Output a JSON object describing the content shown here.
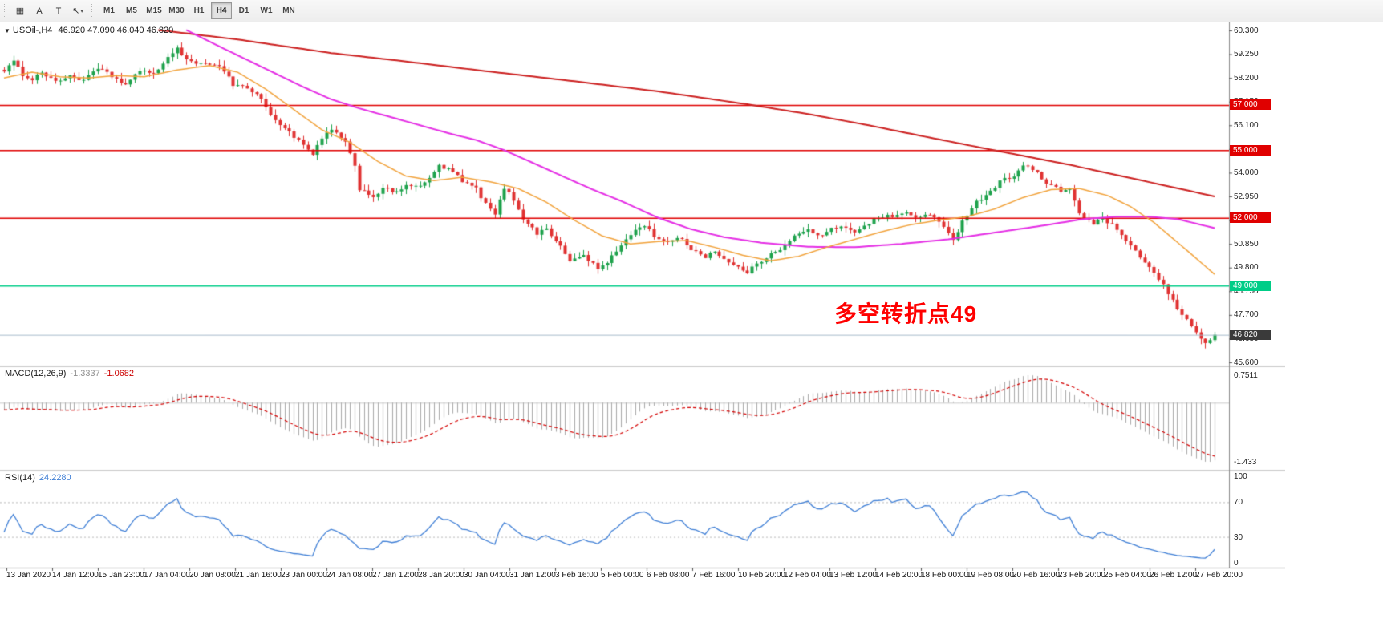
{
  "toolbar": {
    "tool_buttons": [
      {
        "id": "templates",
        "glyph": "▦"
      },
      {
        "id": "text-label",
        "glyph": "A"
      },
      {
        "id": "text-box",
        "glyph": "T"
      },
      {
        "id": "cursor-tool",
        "glyph": "↖",
        "caret": "▾"
      }
    ],
    "timeframes": [
      "M1",
      "M5",
      "M15",
      "M30",
      "H1",
      "H4",
      "D1",
      "W1",
      "MN"
    ],
    "active_timeframe": "H4"
  },
  "chart": {
    "title": "USOil-,H4",
    "ohlc": "46.920 47.090 46.040 46.820",
    "annotation": {
      "text": "多空转折点49",
      "color": "#ff0000"
    },
    "levels": [
      {
        "price": 57.0,
        "label": "57.000",
        "color": "#e00000"
      },
      {
        "price": 55.0,
        "label": "55.000",
        "color": "#e00000"
      },
      {
        "price": 52.0,
        "label": "52.000",
        "color": "#e00000"
      },
      {
        "price": 49.0,
        "label": "49.000",
        "color": "#00cd87"
      }
    ],
    "current_price": {
      "value": 46.82,
      "label": "46.820",
      "color": "#3a3a3a"
    },
    "price_axis": {
      "max": 60.3,
      "min": 45.6,
      "step": 1.05,
      "ticks": [
        "60.300",
        "59.250",
        "58.200",
        "57.150",
        "56.100",
        "55.050",
        "54.000",
        "52.950",
        "51.900",
        "50.850",
        "49.800",
        "48.750",
        "47.700",
        "46.650",
        "45.600"
      ]
    }
  },
  "indicators": {
    "macd": {
      "label": "MACD(12,26,9)",
      "main_value": "-1.3337",
      "signal_value": "-1.0682",
      "axis_max": "0.7511",
      "axis_min": "-1.433"
    },
    "rsi": {
      "label": "RSI(14)",
      "value": "24.2280",
      "axis_labels": [
        "100",
        "70",
        "30",
        "0"
      ],
      "levels": [
        70,
        30
      ]
    }
  },
  "time_axis": {
    "labels": [
      "13 Jan 2020",
      "14 Jan 12:00",
      "15 Jan 23:00",
      "17 Jan 04:00",
      "20 Jan 08:00",
      "21 Jan 16:00",
      "23 Jan 00:00",
      "24 Jan 08:00",
      "27 Jan 12:00",
      "28 Jan 20:00",
      "30 Jan 04:00",
      "31 Jan 12:00",
      "3 Feb 16:00",
      "5 Feb 00:00",
      "6 Feb 08:00",
      "7 Feb 16:00",
      "10 Feb 20:00",
      "12 Feb 04:00",
      "13 Feb 12:00",
      "14 Feb 20:00",
      "18 Feb 00:00",
      "19 Feb 08:00",
      "20 Feb 16:00",
      "23 Feb 20:00",
      "25 Feb 04:00",
      "26 Feb 12:00",
      "27 Feb 20:00"
    ]
  },
  "colors": {
    "candle_up": "#1ea24c",
    "candle_down": "#e03232",
    "ma_slow": "#cc2020",
    "ma_medium": "#e52ee5",
    "ma_fast": "#f2a33c",
    "level_red": "#e00000",
    "level_green": "#00cd87",
    "current_price_line": "#a8bccd",
    "rsi_line": "#3f7fd6",
    "rsi_level_line": "#bbbbbb",
    "macd_signal": "#d40000",
    "macd_histogram": "#a9a9a9",
    "annotation_red": "#ff0000"
  },
  "chart_data": {
    "type": "candlestick",
    "symbol": "USOil-",
    "timeframe": "H4",
    "visible_range": {
      "start": "13 Jan 2020",
      "end": "27 Feb 20:00"
    },
    "candle_count": 260,
    "last_close": 46.82,
    "horizontal_lines": [
      57.0,
      55.0,
      52.0,
      49.0
    ],
    "price_path_anchors": [
      [
        0,
        58.55
      ],
      [
        2,
        58.9
      ],
      [
        4,
        58.35
      ],
      [
        6,
        58.15
      ],
      [
        8,
        58.45
      ],
      [
        10,
        58.2
      ],
      [
        12,
        58.0
      ],
      [
        14,
        58.35
      ],
      [
        16,
        58.1
      ],
      [
        18,
        58.25
      ],
      [
        20,
        58.6
      ],
      [
        22,
        58.4
      ],
      [
        24,
        58.15
      ],
      [
        26,
        57.9
      ],
      [
        28,
        58.3
      ],
      [
        30,
        58.55
      ],
      [
        32,
        58.4
      ],
      [
        34,
        58.8
      ],
      [
        36,
        59.3
      ],
      [
        37,
        59.55
      ],
      [
        39,
        59.0
      ],
      [
        41,
        58.75
      ],
      [
        43,
        58.9
      ],
      [
        45,
        58.8
      ],
      [
        47,
        58.55
      ],
      [
        49,
        57.9
      ],
      [
        51,
        57.85
      ],
      [
        53,
        57.6
      ],
      [
        55,
        57.3
      ],
      [
        57,
        56.5
      ],
      [
        60,
        56.0
      ],
      [
        63,
        55.4
      ],
      [
        66,
        54.8
      ],
      [
        68,
        55.5
      ],
      [
        70,
        55.95
      ],
      [
        73,
        55.3
      ],
      [
        75,
        54.3
      ],
      [
        76,
        53.3
      ],
      [
        79,
        52.95
      ],
      [
        81,
        53.3
      ],
      [
        84,
        53.1
      ],
      [
        86,
        53.5
      ],
      [
        89,
        53.35
      ],
      [
        92,
        54.0
      ],
      [
        93,
        54.3
      ],
      [
        96,
        54.05
      ],
      [
        98,
        53.6
      ],
      [
        101,
        53.3
      ],
      [
        103,
        52.6
      ],
      [
        105,
        52.15
      ],
      [
        107,
        53.35
      ],
      [
        109,
        52.8
      ],
      [
        111,
        52.0
      ],
      [
        114,
        51.3
      ],
      [
        116,
        51.55
      ],
      [
        119,
        50.7
      ],
      [
        121,
        50.1
      ],
      [
        124,
        50.35
      ],
      [
        127,
        49.75
      ],
      [
        129,
        50.0
      ],
      [
        132,
        50.8
      ],
      [
        134,
        51.3
      ],
      [
        137,
        51.7
      ],
      [
        139,
        51.2
      ],
      [
        142,
        50.9
      ],
      [
        145,
        51.1
      ],
      [
        147,
        50.6
      ],
      [
        150,
        50.3
      ],
      [
        152,
        50.55
      ],
      [
        155,
        50.0
      ],
      [
        157,
        49.8
      ],
      [
        159,
        49.6
      ],
      [
        162,
        50.1
      ],
      [
        164,
        50.45
      ],
      [
        167,
        50.75
      ],
      [
        169,
        51.2
      ],
      [
        172,
        51.45
      ],
      [
        175,
        51.2
      ],
      [
        177,
        51.5
      ],
      [
        180,
        51.6
      ],
      [
        182,
        51.4
      ],
      [
        185,
        51.8
      ],
      [
        187,
        52.0
      ],
      [
        190,
        52.1
      ],
      [
        193,
        52.2
      ],
      [
        195,
        52.0
      ],
      [
        198,
        52.2
      ],
      [
        200,
        51.8
      ],
      [
        203,
        51.0
      ],
      [
        205,
        51.9
      ],
      [
        208,
        52.7
      ],
      [
        211,
        53.2
      ],
      [
        213,
        53.6
      ],
      [
        216,
        53.9
      ],
      [
        218,
        54.35
      ],
      [
        221,
        54.0
      ],
      [
        223,
        53.5
      ],
      [
        226,
        53.2
      ],
      [
        228,
        53.3
      ],
      [
        230,
        52.2
      ],
      [
        233,
        51.7
      ],
      [
        235,
        52.0
      ],
      [
        238,
        51.5
      ],
      [
        240,
        50.9
      ],
      [
        243,
        50.3
      ],
      [
        245,
        49.8
      ],
      [
        248,
        49.0
      ],
      [
        250,
        48.3
      ],
      [
        252,
        47.7
      ],
      [
        255,
        47.0
      ],
      [
        257,
        46.4
      ],
      [
        259,
        46.82
      ]
    ],
    "moving_averages": [
      {
        "name": "ma-slow",
        "color": "#cc2020",
        "width": 2,
        "points": [
          [
            33,
            60.32
          ],
          [
            50,
            59.9
          ],
          [
            70,
            59.3
          ],
          [
            85,
            58.95
          ],
          [
            103,
            58.5
          ],
          [
            120,
            58.1
          ],
          [
            140,
            57.6
          ],
          [
            159,
            57.03
          ],
          [
            172,
            56.6
          ],
          [
            185,
            56.1
          ],
          [
            197,
            55.6
          ],
          [
            208,
            55.15
          ],
          [
            218,
            54.75
          ],
          [
            228,
            54.35
          ],
          [
            238,
            53.9
          ],
          [
            248,
            53.45
          ],
          [
            259,
            52.95
          ]
        ]
      },
      {
        "name": "ma-medium",
        "color": "#e52ee5",
        "width": 2,
        "points": [
          [
            39,
            60.32
          ],
          [
            46,
            59.6
          ],
          [
            52,
            59.0
          ],
          [
            58,
            58.4
          ],
          [
            64,
            57.8
          ],
          [
            70,
            57.25
          ],
          [
            76,
            56.85
          ],
          [
            83,
            56.45
          ],
          [
            89,
            56.1
          ],
          [
            96,
            55.7
          ],
          [
            101,
            55.45
          ],
          [
            107,
            55.0
          ],
          [
            113,
            54.45
          ],
          [
            120,
            53.8
          ],
          [
            126,
            53.25
          ],
          [
            132,
            52.75
          ],
          [
            140,
            52.0
          ],
          [
            147,
            51.5
          ],
          [
            154,
            51.15
          ],
          [
            162,
            50.9
          ],
          [
            172,
            50.72
          ],
          [
            182,
            50.7
          ],
          [
            192,
            50.85
          ],
          [
            202,
            51.05
          ],
          [
            212,
            51.35
          ],
          [
            222,
            51.65
          ],
          [
            231,
            51.95
          ],
          [
            238,
            52.05
          ],
          [
            245,
            52.05
          ],
          [
            251,
            51.95
          ],
          [
            259,
            51.55
          ]
        ]
      },
      {
        "name": "ma-fast",
        "color": "#f2a33c",
        "width": 1.5,
        "points": [
          [
            0,
            58.2
          ],
          [
            6,
            58.45
          ],
          [
            12,
            58.25
          ],
          [
            18,
            58.2
          ],
          [
            24,
            58.3
          ],
          [
            30,
            58.25
          ],
          [
            37,
            58.55
          ],
          [
            44,
            58.75
          ],
          [
            50,
            58.45
          ],
          [
            56,
            57.7
          ],
          [
            62,
            56.8
          ],
          [
            68,
            55.9
          ],
          [
            74,
            55.35
          ],
          [
            80,
            54.5
          ],
          [
            86,
            53.85
          ],
          [
            92,
            53.65
          ],
          [
            98,
            53.8
          ],
          [
            104,
            53.6
          ],
          [
            110,
            53.3
          ],
          [
            116,
            52.7
          ],
          [
            122,
            51.9
          ],
          [
            128,
            51.2
          ],
          [
            134,
            50.85
          ],
          [
            140,
            50.95
          ],
          [
            146,
            51.0
          ],
          [
            152,
            50.7
          ],
          [
            158,
            50.35
          ],
          [
            164,
            50.1
          ],
          [
            170,
            50.3
          ],
          [
            176,
            50.7
          ],
          [
            182,
            51.05
          ],
          [
            188,
            51.4
          ],
          [
            194,
            51.7
          ],
          [
            200,
            51.9
          ],
          [
            206,
            52.05
          ],
          [
            212,
            52.4
          ],
          [
            218,
            52.9
          ],
          [
            224,
            53.25
          ],
          [
            230,
            53.3
          ],
          [
            236,
            53.0
          ],
          [
            241,
            52.5
          ],
          [
            246,
            51.8
          ],
          [
            250,
            51.1
          ],
          [
            254,
            50.4
          ],
          [
            259,
            49.5
          ]
        ]
      }
    ]
  }
}
